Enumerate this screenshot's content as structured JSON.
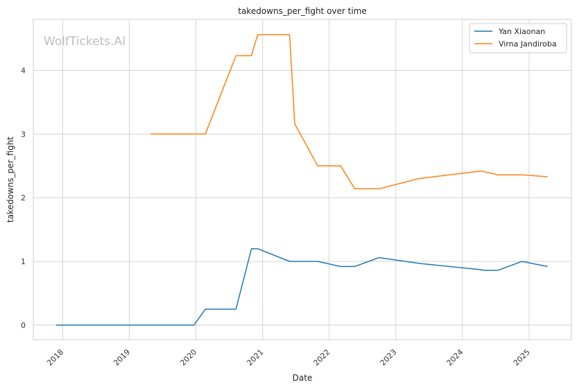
{
  "chart_data": {
    "type": "line",
    "title": "takedowns_per_fight over time",
    "xlabel": "Date",
    "ylabel": "takedowns_per_fight",
    "watermark": "WolfTickets.AI",
    "x_ticks": [
      "2018",
      "2019",
      "2020",
      "2021",
      "2022",
      "2023",
      "2024",
      "2025"
    ],
    "y_ticks": [
      "0",
      "1",
      "2",
      "3",
      "4"
    ],
    "xlim": [
      "2017-07-24",
      "2025-08-21"
    ],
    "ylim": [
      -0.23,
      4.8
    ],
    "grid": true,
    "legend_position": "top-right",
    "series": [
      {
        "name": "Yan Xiaonan",
        "color": "#1f77b4",
        "points": [
          [
            "2017-11-25",
            0.0
          ],
          [
            "2019-12-21",
            0.0
          ],
          [
            "2020-02-22",
            0.25
          ],
          [
            "2020-08-08",
            0.25
          ],
          [
            "2020-11-01",
            1.2
          ],
          [
            "2020-12-05",
            1.2
          ],
          [
            "2021-05-29",
            1.0
          ],
          [
            "2021-10-30",
            1.0
          ],
          [
            "2022-03-05",
            0.92
          ],
          [
            "2022-05-21",
            0.92
          ],
          [
            "2022-10-01",
            1.06
          ],
          [
            "2023-05-06",
            0.97
          ],
          [
            "2024-04-13",
            0.87
          ],
          [
            "2024-05-01",
            0.86
          ],
          [
            "2024-07-13",
            0.86
          ],
          [
            "2024-11-23",
            1.0
          ],
          [
            "2025-04-12",
            0.92
          ]
        ]
      },
      {
        "name": "Virna Jandiroba",
        "color": "#ff7f0e",
        "points": [
          [
            "2019-04-27",
            3.0
          ],
          [
            "2020-02-22",
            3.0
          ],
          [
            "2020-08-08",
            4.23
          ],
          [
            "2020-10-31",
            4.23
          ],
          [
            "2020-12-05",
            4.56
          ],
          [
            "2021-05-29",
            4.56
          ],
          [
            "2021-06-26",
            3.16
          ],
          [
            "2021-10-30",
            2.5
          ],
          [
            "2022-03-05",
            2.5
          ],
          [
            "2022-05-21",
            2.14
          ],
          [
            "2022-10-01",
            2.14
          ],
          [
            "2023-05-06",
            2.3
          ],
          [
            "2024-04-13",
            2.42
          ],
          [
            "2024-07-13",
            2.36
          ],
          [
            "2024-11-23",
            2.36
          ],
          [
            "2025-04-12",
            2.33
          ]
        ]
      }
    ]
  }
}
